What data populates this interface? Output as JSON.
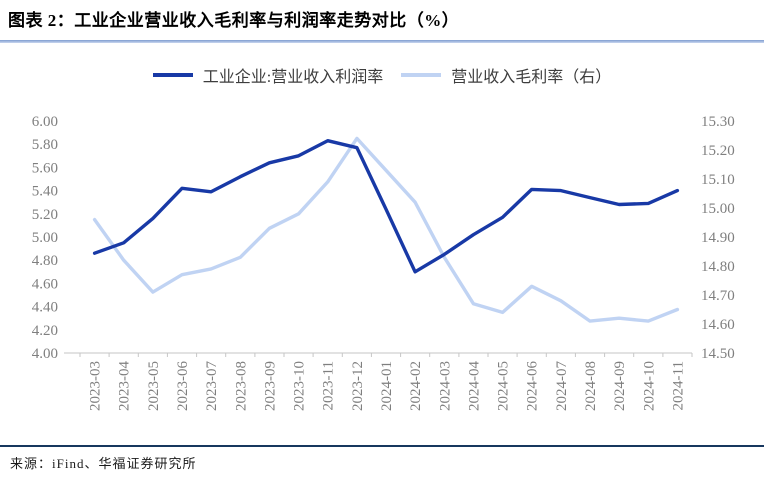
{
  "header": {
    "title": "图表 2：工业企业营业收入毛利率与利润率走势对比（%）"
  },
  "chart_data": {
    "type": "line",
    "title": "工业企业营业收入毛利率与利润率走势对比（%）",
    "categories": [
      "2023-03",
      "2023-04",
      "2023-05",
      "2023-06",
      "2023-07",
      "2023-08",
      "2023-09",
      "2023-10",
      "2023-11",
      "2023-12",
      "2024-01",
      "2024-02",
      "2024-03",
      "2024-04",
      "2024-05",
      "2024-06",
      "2024-07",
      "2024-08",
      "2024-09",
      "2024-10",
      "2024-11"
    ],
    "series": [
      {
        "name": "工业企业:营业收入利润率",
        "axis": "left",
        "color": "#1839a6",
        "values": [
          4.86,
          4.95,
          5.16,
          5.42,
          5.39,
          5.52,
          5.64,
          5.7,
          5.83,
          5.77,
          5.24,
          4.7,
          4.85,
          5.02,
          5.17,
          5.41,
          5.4,
          5.34,
          5.28,
          5.29,
          5.4
        ]
      },
      {
        "name": "营业收入毛利率（右）",
        "axis": "right",
        "color": "#c0d3f3",
        "values": [
          14.96,
          14.82,
          14.71,
          14.77,
          14.79,
          14.83,
          14.93,
          14.98,
          15.09,
          15.24,
          15.13,
          15.02,
          14.83,
          14.67,
          14.64,
          14.73,
          14.68,
          14.61,
          14.62,
          14.61,
          14.65
        ]
      }
    ],
    "left_axis": {
      "min": 4.0,
      "max": 6.0,
      "tick_step": 0.2,
      "tick_labels": [
        "6.00",
        "5.80",
        "5.60",
        "5.40",
        "5.20",
        "5.00",
        "4.80",
        "4.60",
        "4.40",
        "4.20",
        "4.00"
      ]
    },
    "right_axis": {
      "min": 14.5,
      "max": 15.3,
      "tick_step": 0.1,
      "tick_labels": [
        "15.30",
        "15.20",
        "15.10",
        "15.00",
        "14.90",
        "14.80",
        "14.70",
        "14.60",
        "14.50"
      ]
    },
    "grid": false,
    "legend_position": "top"
  },
  "footer": {
    "source": "来源：iFind、华福证券研究所"
  },
  "colors": {
    "divider_top": "#7e9cd0",
    "divider_bottom": "#c9d7ef",
    "footer_rule": "#17375e",
    "axis_text": "#7f7f7f",
    "axis_line": "#c6c6c6"
  }
}
